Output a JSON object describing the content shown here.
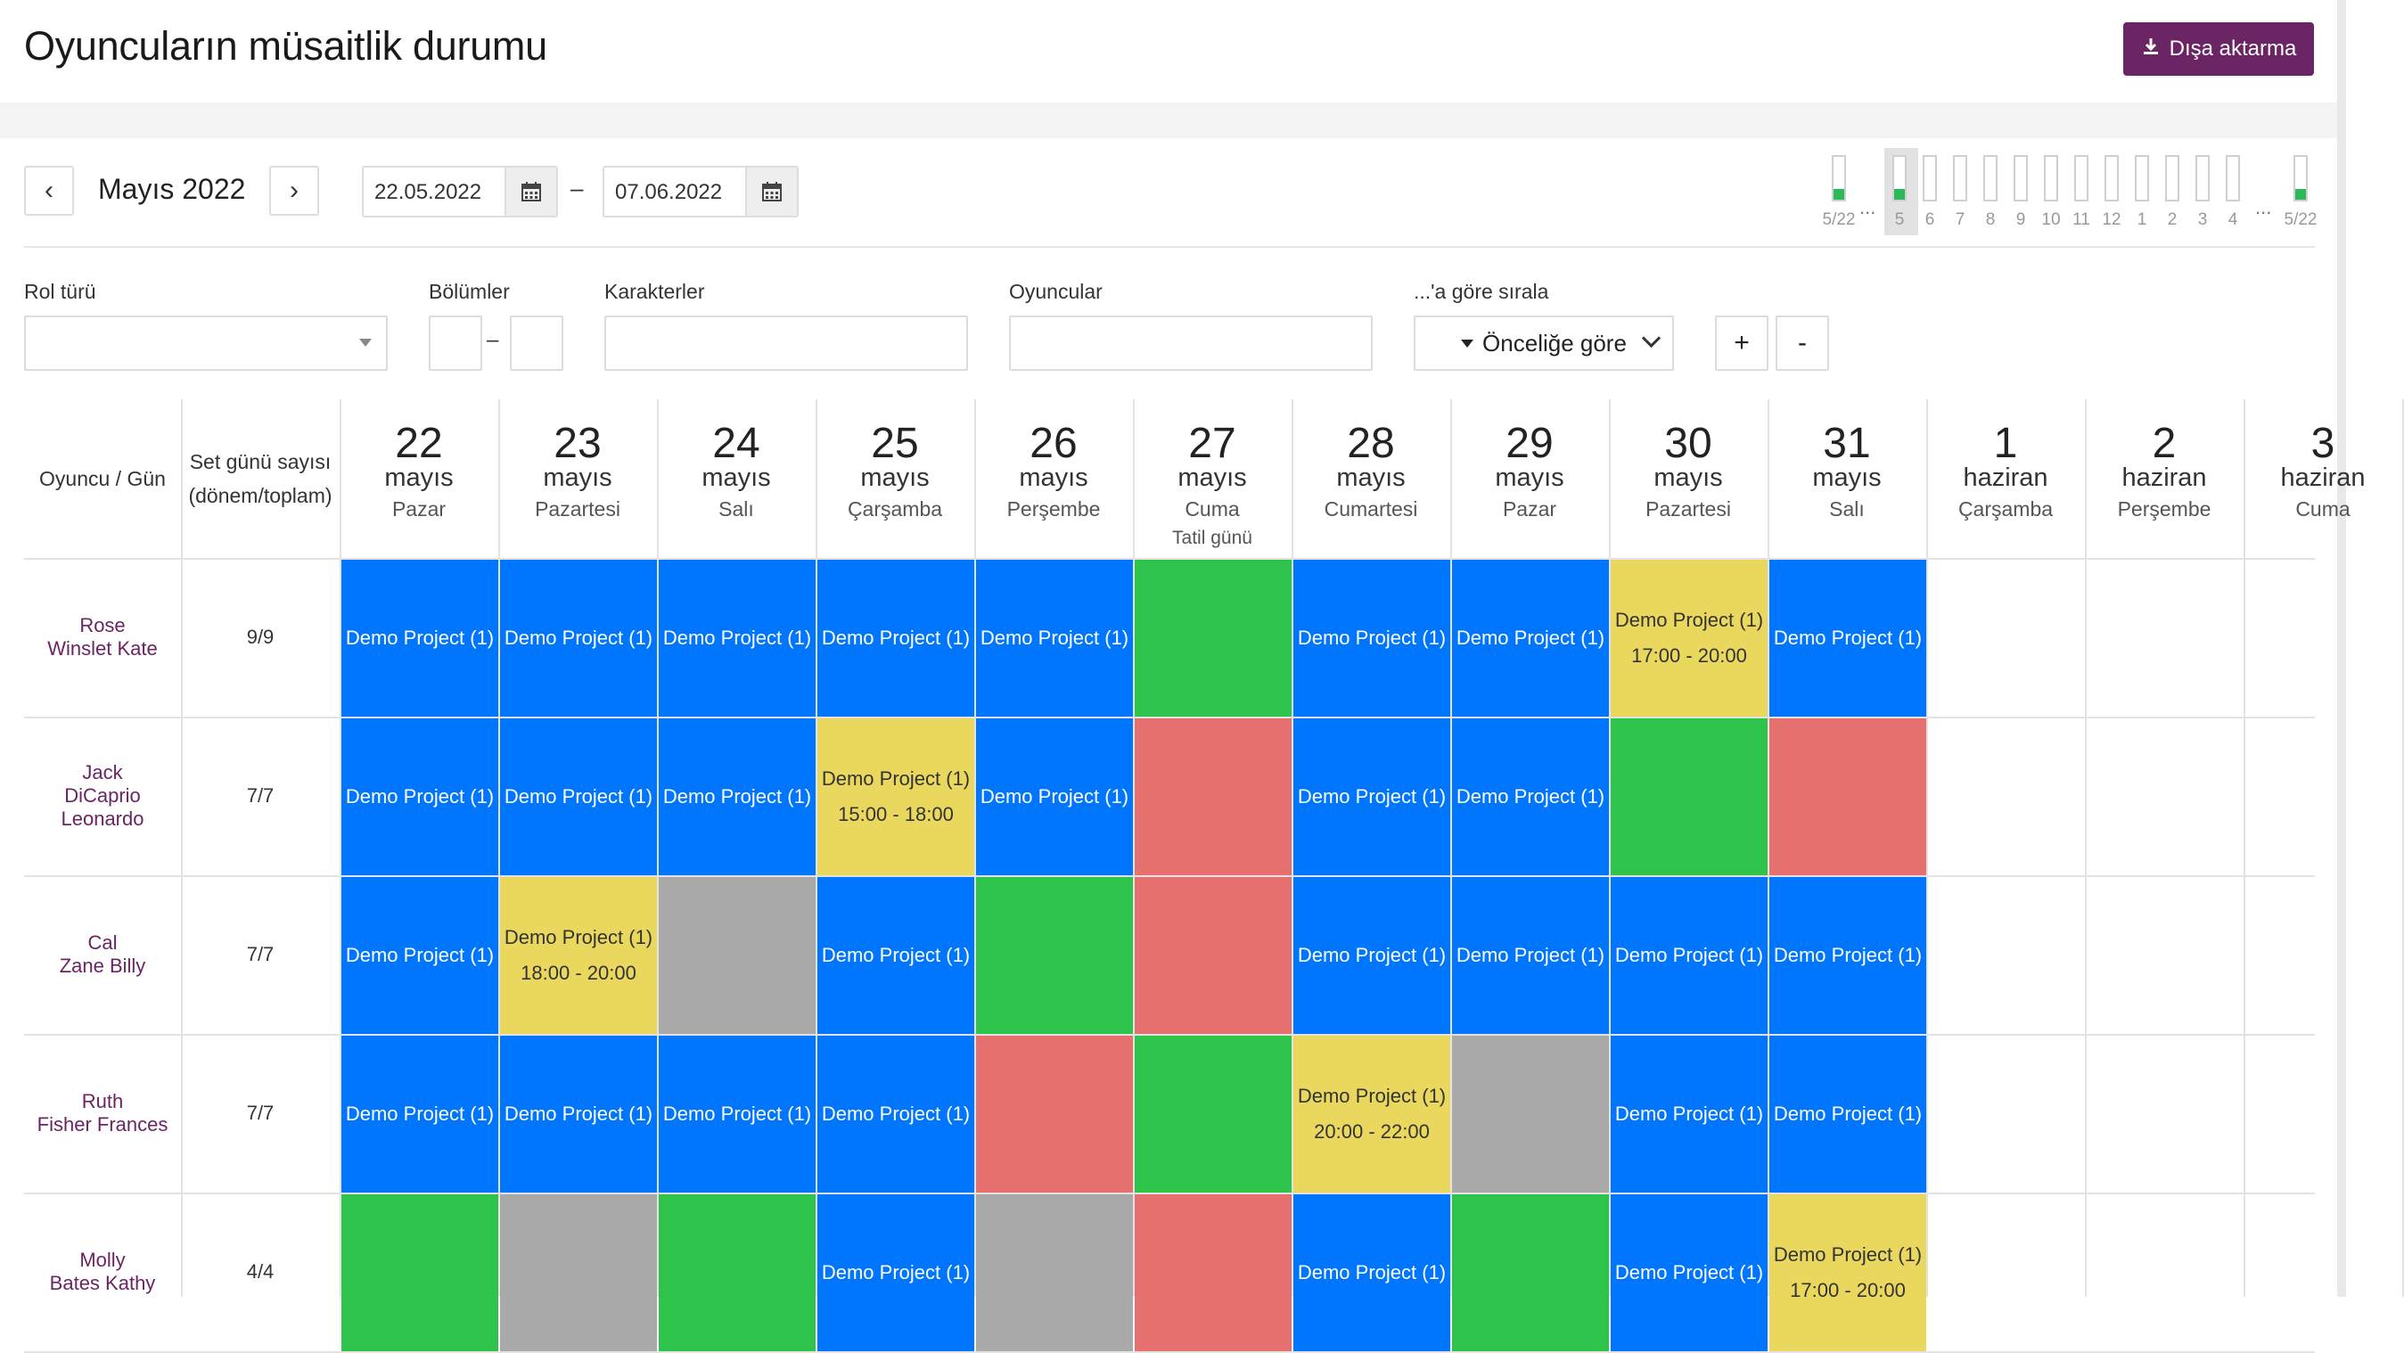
{
  "header": {
    "title": "Oyuncuların müsaitlik durumu",
    "export_label": "Dışa aktarma"
  },
  "nav": {
    "prev": "‹",
    "next": "›",
    "month": "Mayıs 2022",
    "start_date": "22.05.2022",
    "end_date": "07.06.2022",
    "dash": "–"
  },
  "timeline": {
    "start_label": "5/22",
    "end_label": "5/22",
    "dots": "...",
    "days": [
      "5",
      "6",
      "7",
      "8",
      "9",
      "10",
      "11",
      "12",
      "1",
      "2",
      "3",
      "4"
    ],
    "filled": [
      true,
      false,
      false,
      false,
      false,
      false,
      false,
      false,
      false,
      false,
      false,
      false
    ],
    "selected_index": 0
  },
  "filters": {
    "role_type_label": "Rol türü",
    "episodes_label": "Bölümler",
    "episodes_dash": "–",
    "characters_label": "Karakterler",
    "actors_label": "Oyuncular",
    "sort_label": "...'a göre sırala",
    "sort_value": "Önceliğe göre",
    "plus": "+",
    "minus": "-"
  },
  "table": {
    "col_actor": "Oyuncu / Gün",
    "col_count_line1": "Set günü sayısı",
    "col_count_line2": "(dönem/toplam)",
    "days": [
      {
        "num": "22",
        "month": "mayıs",
        "weekday": "Pazar",
        "note": ""
      },
      {
        "num": "23",
        "month": "mayıs",
        "weekday": "Pazartesi",
        "note": ""
      },
      {
        "num": "24",
        "month": "mayıs",
        "weekday": "Salı",
        "note": ""
      },
      {
        "num": "25",
        "month": "mayıs",
        "weekday": "Çarşamba",
        "note": ""
      },
      {
        "num": "26",
        "month": "mayıs",
        "weekday": "Perşembe",
        "note": ""
      },
      {
        "num": "27",
        "month": "mayıs",
        "weekday": "Cuma",
        "note": "Tatil günü"
      },
      {
        "num": "28",
        "month": "mayıs",
        "weekday": "Cumartesi",
        "note": ""
      },
      {
        "num": "29",
        "month": "mayıs",
        "weekday": "Pazar",
        "note": ""
      },
      {
        "num": "30",
        "month": "mayıs",
        "weekday": "Pazartesi",
        "note": ""
      },
      {
        "num": "31",
        "month": "mayıs",
        "weekday": "Salı",
        "note": ""
      },
      {
        "num": "1",
        "month": "haziran",
        "weekday": "Çarşamba",
        "note": ""
      },
      {
        "num": "2",
        "month": "haziran",
        "weekday": "Perşembe",
        "note": ""
      },
      {
        "num": "3",
        "month": "haziran",
        "weekday": "Cuma",
        "note": ""
      }
    ],
    "rows": [
      {
        "name_line1": "Rose",
        "name_line2": "Winslet Kate",
        "name_line3": "",
        "count": "9/9",
        "cells": [
          {
            "status": "blue",
            "text": "Demo Project (1)",
            "time": ""
          },
          {
            "status": "blue",
            "text": "Demo Project (1)",
            "time": ""
          },
          {
            "status": "blue",
            "text": "Demo Project (1)",
            "time": ""
          },
          {
            "status": "blue",
            "text": "Demo Project (1)",
            "time": ""
          },
          {
            "status": "blue",
            "text": "Demo Project (1)",
            "time": ""
          },
          {
            "status": "green",
            "text": "",
            "time": ""
          },
          {
            "status": "blue",
            "text": "Demo Project (1)",
            "time": ""
          },
          {
            "status": "blue",
            "text": "Demo Project (1)",
            "time": ""
          },
          {
            "status": "yellow",
            "text": "Demo Project (1)",
            "time": "17:00 - 20:00"
          },
          {
            "status": "blue",
            "text": "Demo Project (1)",
            "time": ""
          },
          {
            "status": "empty",
            "text": "",
            "time": ""
          },
          {
            "status": "empty",
            "text": "",
            "time": ""
          },
          {
            "status": "empty",
            "text": "",
            "time": ""
          }
        ]
      },
      {
        "name_line1": "Jack",
        "name_line2": "DiCaprio",
        "name_line3": "Leonardo",
        "count": "7/7",
        "cells": [
          {
            "status": "blue",
            "text": "Demo Project (1)",
            "time": ""
          },
          {
            "status": "blue",
            "text": "Demo Project (1)",
            "time": ""
          },
          {
            "status": "blue",
            "text": "Demo Project (1)",
            "time": ""
          },
          {
            "status": "yellow",
            "text": "Demo Project (1)",
            "time": "15:00 - 18:00"
          },
          {
            "status": "blue",
            "text": "Demo Project (1)",
            "time": ""
          },
          {
            "status": "red",
            "text": "",
            "time": ""
          },
          {
            "status": "blue",
            "text": "Demo Project (1)",
            "time": ""
          },
          {
            "status": "blue",
            "text": "Demo Project (1)",
            "time": ""
          },
          {
            "status": "green",
            "text": "",
            "time": ""
          },
          {
            "status": "red",
            "text": "",
            "time": ""
          },
          {
            "status": "empty",
            "text": "",
            "time": ""
          },
          {
            "status": "empty",
            "text": "",
            "time": ""
          },
          {
            "status": "empty",
            "text": "",
            "time": ""
          }
        ]
      },
      {
        "name_line1": "Cal",
        "name_line2": "Zane Billy",
        "name_line3": "",
        "count": "7/7",
        "cells": [
          {
            "status": "blue",
            "text": "Demo Project (1)",
            "time": ""
          },
          {
            "status": "yellow",
            "text": "Demo Project (1)",
            "time": "18:00 - 20:00"
          },
          {
            "status": "gray",
            "text": "",
            "time": ""
          },
          {
            "status": "blue",
            "text": "Demo Project (1)",
            "time": ""
          },
          {
            "status": "green",
            "text": "",
            "time": ""
          },
          {
            "status": "red",
            "text": "",
            "time": ""
          },
          {
            "status": "blue",
            "text": "Demo Project (1)",
            "time": ""
          },
          {
            "status": "blue",
            "text": "Demo Project (1)",
            "time": ""
          },
          {
            "status": "blue",
            "text": "Demo Project (1)",
            "time": ""
          },
          {
            "status": "blue",
            "text": "Demo Project (1)",
            "time": ""
          },
          {
            "status": "empty",
            "text": "",
            "time": ""
          },
          {
            "status": "empty",
            "text": "",
            "time": ""
          },
          {
            "status": "empty",
            "text": "",
            "time": ""
          }
        ]
      },
      {
        "name_line1": "Ruth",
        "name_line2": "Fisher Frances",
        "name_line3": "",
        "count": "7/7",
        "cells": [
          {
            "status": "blue",
            "text": "Demo Project (1)",
            "time": ""
          },
          {
            "status": "blue",
            "text": "Demo Project (1)",
            "time": ""
          },
          {
            "status": "blue",
            "text": "Demo Project (1)",
            "time": ""
          },
          {
            "status": "blue",
            "text": "Demo Project (1)",
            "time": ""
          },
          {
            "status": "red",
            "text": "",
            "time": ""
          },
          {
            "status": "green",
            "text": "",
            "time": ""
          },
          {
            "status": "yellow",
            "text": "Demo Project (1)",
            "time": "20:00 - 22:00"
          },
          {
            "status": "gray",
            "text": "",
            "time": ""
          },
          {
            "status": "blue",
            "text": "Demo Project (1)",
            "time": ""
          },
          {
            "status": "blue",
            "text": "Demo Project (1)",
            "time": ""
          },
          {
            "status": "empty",
            "text": "",
            "time": ""
          },
          {
            "status": "empty",
            "text": "",
            "time": ""
          },
          {
            "status": "empty",
            "text": "",
            "time": ""
          }
        ]
      },
      {
        "name_line1": "Molly",
        "name_line2": "Bates Kathy",
        "name_line3": "",
        "count": "4/4",
        "cells": [
          {
            "status": "green",
            "text": "",
            "time": ""
          },
          {
            "status": "gray",
            "text": "",
            "time": ""
          },
          {
            "status": "green",
            "text": "",
            "time": ""
          },
          {
            "status": "blue",
            "text": "Demo Project (1)",
            "time": ""
          },
          {
            "status": "gray",
            "text": "",
            "time": ""
          },
          {
            "status": "red",
            "text": "",
            "time": ""
          },
          {
            "status": "blue",
            "text": "Demo Project (1)",
            "time": ""
          },
          {
            "status": "green",
            "text": "",
            "time": ""
          },
          {
            "status": "blue",
            "text": "Demo Project (1)",
            "time": ""
          },
          {
            "status": "yellow",
            "text": "Demo Project (1)",
            "time": "17:00 - 20:00"
          },
          {
            "status": "empty",
            "text": "",
            "time": ""
          },
          {
            "status": "empty",
            "text": "",
            "time": ""
          },
          {
            "status": "empty",
            "text": "",
            "time": ""
          }
        ]
      }
    ]
  },
  "colors": {
    "accent": "#6b2464",
    "scheduled": "#0076ff",
    "available": "#2ec44c",
    "unavailable": "#e66f6f",
    "unknown": "#a9a9a9",
    "partial": "#ead85e"
  },
  "icons": {
    "export": "download-icon",
    "calendar": "calendar-icon"
  }
}
